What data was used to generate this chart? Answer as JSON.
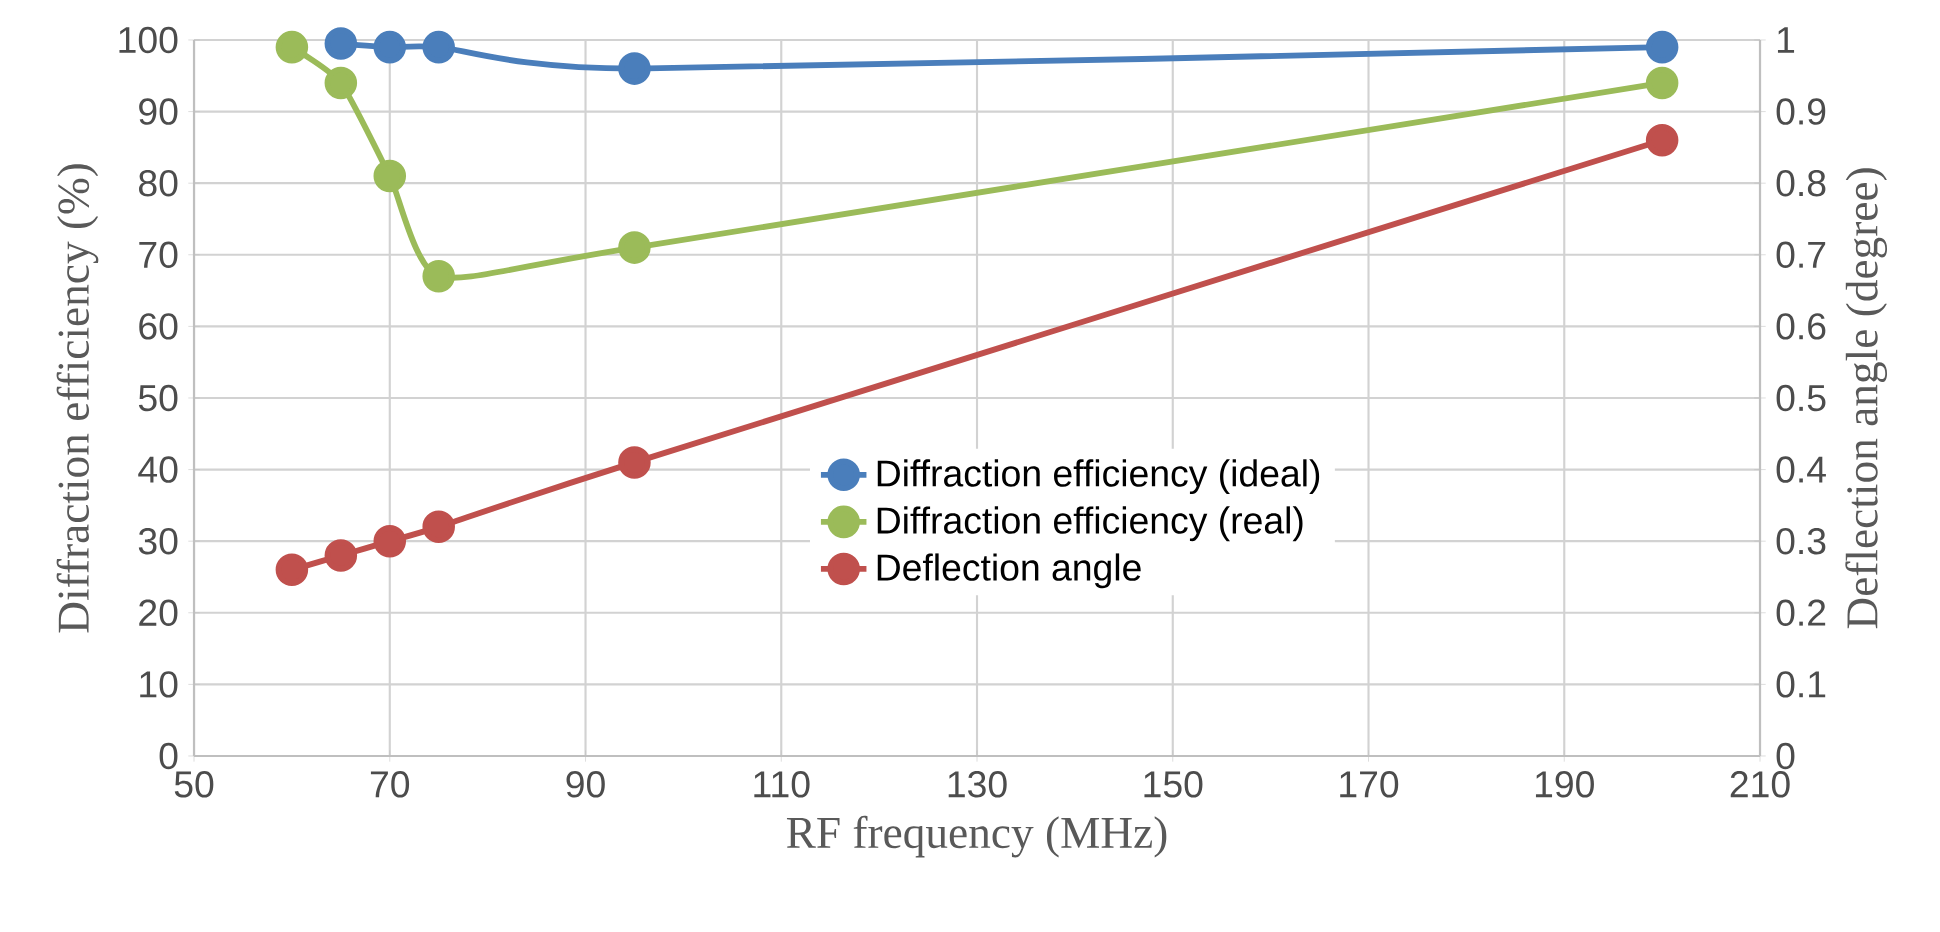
{
  "chart_data": {
    "type": "line",
    "xlabel": "RF frequency (MHz)",
    "ylabel": "Diffraction efficiency (%)",
    "y2label": "Deflection angle (degree)",
    "x": [
      60,
      65,
      70,
      75,
      95,
      200
    ],
    "xlim": [
      50,
      210
    ],
    "xticks": [
      50,
      70,
      90,
      110,
      130,
      150,
      170,
      190,
      210
    ],
    "ylim": [
      0,
      100
    ],
    "yticks": [
      0,
      10,
      20,
      30,
      40,
      50,
      60,
      70,
      80,
      90,
      100
    ],
    "y2lim": [
      0,
      1
    ],
    "y2ticks": [
      0,
      0.1,
      0.2,
      0.3,
      0.4,
      0.5,
      0.6,
      0.7,
      0.8,
      0.9,
      1
    ],
    "grid": true,
    "legend": "right",
    "marker": "circle",
    "line_style": "solid",
    "series": [
      {
        "name": "Diffraction efficiency (ideal)",
        "color": "#4a7ebb",
        "values": [
          null,
          99.5,
          99,
          99,
          96,
          99
        ]
      },
      {
        "name": "Diffraction efficiency (real)",
        "color": "#9bbb59",
        "values": [
          99,
          94,
          81,
          67,
          71,
          94
        ]
      },
      {
        "name": "Deflection angle",
        "color": "#c0504d",
        "axis": "y2",
        "values": [
          0.26,
          0.28,
          0.3,
          0.32,
          0.41,
          0.86
        ]
      }
    ]
  }
}
